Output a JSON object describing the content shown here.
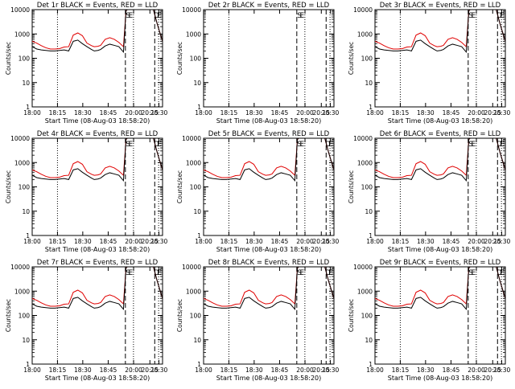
{
  "figure": {
    "xlabel": "Start Time (08-Aug-03 18:58:20)",
    "ylabel": "Counts/sec"
  },
  "chart_data": [
    {
      "type": "line",
      "title": "Det 1r BLACK = Events, RED = LLD",
      "data_present": true,
      "x_ticks": [
        "18:00",
        "18:15",
        "18:30",
        "18:45",
        "20:00",
        "20:15",
        "20:30"
      ],
      "y_ticks": [
        "1",
        "10",
        "100",
        "1000",
        "10000"
      ],
      "ylim": [
        1,
        10000
      ],
      "yscale": "log",
      "annotations": [
        "S",
        "E",
        "D",
        "E"
      ]
    },
    {
      "type": "line",
      "title": "Det 2r BLACK = Events, RED = LLD",
      "data_present": false,
      "x_ticks": [
        "18:00",
        "18:15",
        "18:30",
        "18:45",
        "20:00",
        "20:15",
        "20:30"
      ],
      "y_ticks": [
        "1",
        "10",
        "100",
        "1000",
        "10000"
      ],
      "ylim": [
        1,
        10000
      ],
      "yscale": "log",
      "annotations": [
        "S",
        "E"
      ]
    },
    {
      "type": "line",
      "title": "Det 3r BLACK = Events, RED = LLD",
      "data_present": true,
      "x_ticks": [
        "18:00",
        "18:15",
        "18:30",
        "18:45",
        "20:00",
        "20:15",
        "20:30"
      ],
      "y_ticks": [
        "1",
        "10",
        "100",
        "1000",
        "10000"
      ],
      "ylim": [
        1,
        10000
      ],
      "yscale": "log",
      "annotations": [
        "S",
        "E",
        "D",
        "E"
      ]
    },
    {
      "type": "line",
      "title": "Det 4r BLACK = Events, RED = LLD",
      "data_present": true,
      "x_ticks": [
        "18:00",
        "18:15",
        "18:30",
        "18:45",
        "20:00",
        "20:15",
        "20:30"
      ],
      "y_ticks": [
        "1",
        "10",
        "100",
        "1000",
        "10000"
      ],
      "ylim": [
        1,
        10000
      ],
      "yscale": "log",
      "annotations": [
        "S",
        "E",
        "D",
        "E"
      ]
    },
    {
      "type": "line",
      "title": "Det 5r BLACK = Events, RED = LLD",
      "data_present": true,
      "x_ticks": [
        "18:00",
        "18:15",
        "18:30",
        "18:45",
        "20:00",
        "20:15",
        "20:30"
      ],
      "y_ticks": [
        "1",
        "10",
        "100",
        "1000",
        "10000"
      ],
      "ylim": [
        1,
        10000
      ],
      "yscale": "log",
      "annotations": [
        "S",
        "E",
        "D",
        "E"
      ]
    },
    {
      "type": "line",
      "title": "Det 6r BLACK = Events, RED = LLD",
      "data_present": true,
      "x_ticks": [
        "18:00",
        "18:15",
        "18:30",
        "18:45",
        "20:00",
        "20:15",
        "20:30"
      ],
      "y_ticks": [
        "1",
        "10",
        "100",
        "1000",
        "10000"
      ],
      "ylim": [
        1,
        10000
      ],
      "yscale": "log",
      "annotations": [
        "S",
        "E",
        "D",
        "E"
      ]
    },
    {
      "type": "line",
      "title": "Det 7r BLACK = Events, RED = LLD",
      "data_present": true,
      "x_ticks": [
        "18:00",
        "18:15",
        "18:30",
        "18:45",
        "20:00",
        "20:15",
        "20:30"
      ],
      "y_ticks": [
        "1",
        "10",
        "100",
        "1000",
        "10000"
      ],
      "ylim": [
        1,
        10000
      ],
      "yscale": "log",
      "annotations": [
        "S",
        "E",
        "D",
        "E"
      ]
    },
    {
      "type": "line",
      "title": "Det 8r BLACK = Events, RED = LLD",
      "data_present": true,
      "x_ticks": [
        "18:00",
        "18:15",
        "18:30",
        "18:45",
        "20:00",
        "20:15",
        "20:30"
      ],
      "y_ticks": [
        "1",
        "10",
        "100",
        "1000",
        "10000"
      ],
      "ylim": [
        1,
        10000
      ],
      "yscale": "log",
      "annotations": [
        "S",
        "E",
        "D",
        "E"
      ]
    },
    {
      "type": "line",
      "title": "Det 9r BLACK = Events, RED = LLD",
      "data_present": true,
      "x_ticks": [
        "18:00",
        "18:15",
        "18:30",
        "18:45",
        "20:00",
        "20:15",
        "20:30"
      ],
      "y_ticks": [
        "1",
        "10",
        "100",
        "1000",
        "10000"
      ],
      "ylim": [
        1,
        10000
      ],
      "yscale": "log",
      "annotations": [
        "S",
        "E",
        "D",
        "E"
      ]
    }
  ],
  "series_profile": {
    "x_fraction": [
      0.0,
      0.05,
      0.1,
      0.15,
      0.2,
      0.25,
      0.3,
      0.35,
      0.4,
      0.45,
      0.5,
      0.55,
      0.6,
      0.65,
      0.68,
      0.72,
      0.75,
      0.8,
      0.85,
      0.9,
      0.95,
      1.0
    ],
    "lld_counts": [
      500,
      420,
      330,
      270,
      240,
      240,
      250,
      290,
      300,
      900,
      1100,
      850,
      420,
      330,
      300,
      310,
      340,
      600,
      700,
      600,
      450,
      300
    ],
    "events_counts": [
      300,
      240,
      220,
      210,
      200,
      200,
      210,
      220,
      200,
      500,
      560,
      400,
      300,
      230,
      200,
      210,
      230,
      320,
      380,
      340,
      300,
      180
    ]
  }
}
